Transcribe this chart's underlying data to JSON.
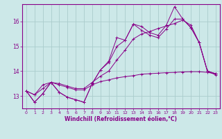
{
  "background_color": "#cce8e8",
  "grid_color": "#aacccc",
  "line_color": "#880088",
  "xlabel": "Windchill (Refroidissement éolien,°C)",
  "xlim": [
    -0.5,
    23.5
  ],
  "ylim": [
    12.5,
    16.7
  ],
  "yticks": [
    13,
    14,
    15,
    16
  ],
  "xticks": [
    0,
    1,
    2,
    3,
    4,
    5,
    6,
    7,
    8,
    9,
    10,
    11,
    12,
    13,
    14,
    15,
    16,
    17,
    18,
    19,
    20,
    21,
    22,
    23
  ],
  "s1_x": [
    0,
    1,
    2,
    3,
    4,
    5,
    6,
    7,
    8,
    9,
    10,
    11,
    12,
    13,
    14,
    15,
    16,
    17,
    18,
    19,
    20,
    21,
    22,
    23
  ],
  "s1_y": [
    13.2,
    12.75,
    13.1,
    13.55,
    13.15,
    12.95,
    12.85,
    12.75,
    13.5,
    14.05,
    14.4,
    15.35,
    15.25,
    15.9,
    15.8,
    15.55,
    15.45,
    15.85,
    16.6,
    16.1,
    15.75,
    15.15,
    14.0,
    13.85
  ],
  "s2_x": [
    0,
    1,
    2,
    3,
    4,
    5,
    6,
    7,
    8,
    9,
    10,
    11,
    12,
    13,
    14,
    15,
    16,
    17,
    18,
    19,
    20,
    21,
    22,
    23
  ],
  "s2_y": [
    13.2,
    12.75,
    13.1,
    13.55,
    13.15,
    12.95,
    12.85,
    12.75,
    13.5,
    14.05,
    14.35,
    15.0,
    15.25,
    15.9,
    15.65,
    15.45,
    15.35,
    15.7,
    16.1,
    16.1,
    15.75,
    15.15,
    14.0,
    13.9
  ],
  "s3_x": [
    0,
    1,
    2,
    3,
    4,
    5,
    6,
    7,
    8,
    9,
    10,
    11,
    12,
    13,
    14,
    15,
    16,
    17,
    18,
    19,
    20,
    21,
    22,
    23
  ],
  "s3_y": [
    13.2,
    13.05,
    13.3,
    13.55,
    13.45,
    13.35,
    13.25,
    13.25,
    13.45,
    13.58,
    13.65,
    13.73,
    13.78,
    13.82,
    13.88,
    13.9,
    13.92,
    13.94,
    13.95,
    13.97,
    13.98,
    13.98,
    13.95,
    13.9
  ],
  "s4_x": [
    0,
    1,
    2,
    3,
    4,
    5,
    6,
    7,
    8,
    9,
    10,
    11,
    12,
    13,
    14,
    15,
    16,
    17,
    18,
    19,
    20,
    21,
    22,
    23
  ],
  "s4_y": [
    13.2,
    13.05,
    13.45,
    13.55,
    13.5,
    13.4,
    13.3,
    13.3,
    13.55,
    13.8,
    14.0,
    14.45,
    14.85,
    15.3,
    15.5,
    15.6,
    15.72,
    15.82,
    15.92,
    16.06,
    15.85,
    15.15,
    14.0,
    13.9
  ]
}
